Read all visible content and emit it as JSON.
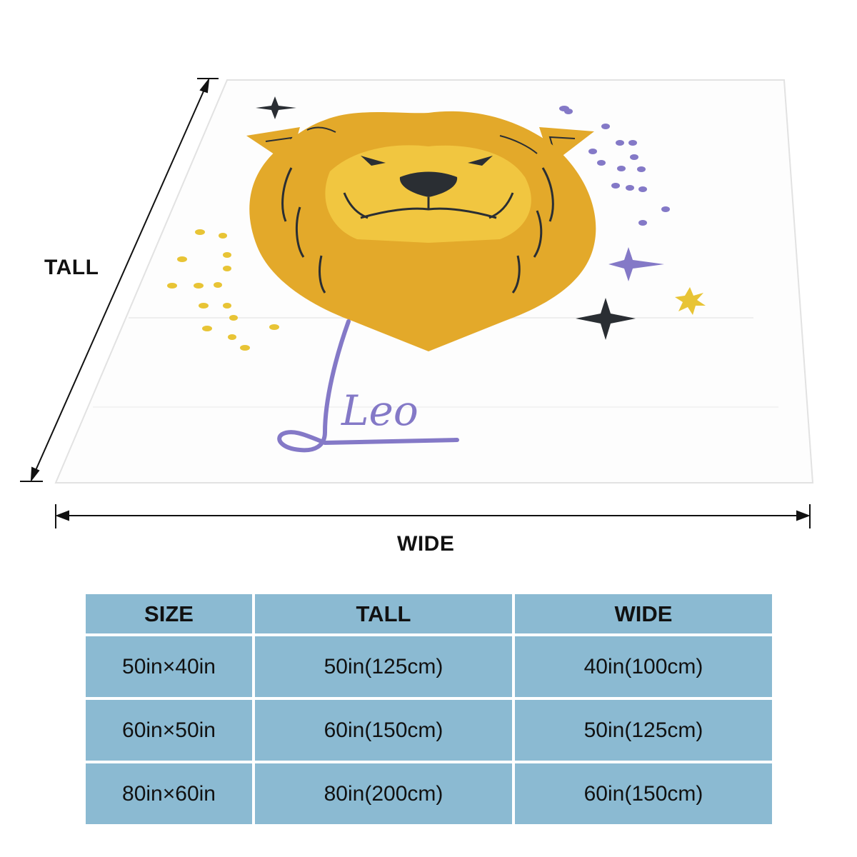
{
  "dimensions": {
    "tall_label": "TALL",
    "wide_label": "WIDE"
  },
  "blanket": {
    "design_text": "Leo",
    "colors": {
      "mane": "#e3a92a",
      "face": "#f1c640",
      "purple": "#8479c7",
      "yellow": "#e8c435",
      "dark": "#2a2e33"
    }
  },
  "table": {
    "headers": [
      "SIZE",
      "TALL",
      "WIDE"
    ],
    "rows": [
      [
        "50in×40in",
        "50in(125cm)",
        "40in(100cm)"
      ],
      [
        "60in×50in",
        "60in(150cm)",
        "50in(125cm)"
      ],
      [
        "80in×60in",
        "80in(200cm)",
        "60in(150cm)"
      ]
    ],
    "cell_color": "#8bbad2"
  }
}
